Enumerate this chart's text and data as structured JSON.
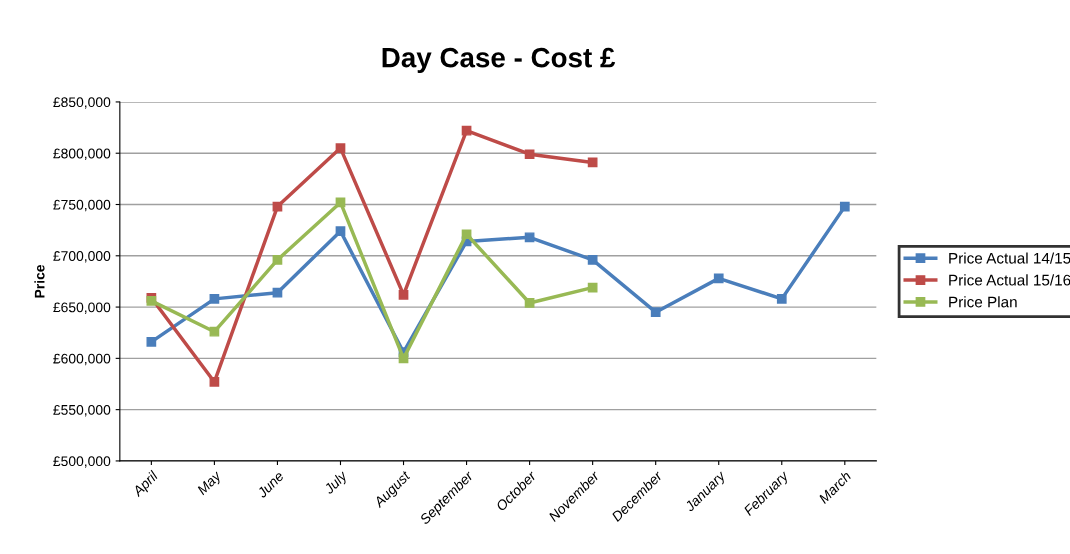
{
  "chart_data": {
    "type": "line",
    "title": "Day Case - Cost £",
    "ylabel": "Price",
    "categories": [
      "April",
      "May",
      "June",
      "July",
      "August",
      "September",
      "October",
      "November",
      "December",
      "January",
      "February",
      "March"
    ],
    "series": [
      {
        "name": "Price Actual 14/15",
        "color": "#4a7ebb",
        "values": [
          616000,
          658000,
          664000,
          724000,
          606000,
          714000,
          718000,
          696000,
          645000,
          678000,
          658000,
          748000
        ]
      },
      {
        "name": "Price Actual 15/16",
        "color": "#be4b48",
        "values": [
          659000,
          577000,
          748000,
          805000,
          662000,
          822000,
          799000,
          791000,
          null,
          null,
          null,
          null
        ]
      },
      {
        "name": "Price Plan",
        "color": "#98b954",
        "values": [
          656000,
          626000,
          696000,
          752000,
          600000,
          721000,
          654000,
          669000,
          null,
          null,
          null,
          null
        ]
      }
    ],
    "ylim": [
      500000,
      850000
    ],
    "yticks": [
      {
        "value": 500000,
        "label": "£500,000"
      },
      {
        "value": 550000,
        "label": "£550,000"
      },
      {
        "value": 600000,
        "label": "£600,000"
      },
      {
        "value": 650000,
        "label": "£650,000"
      },
      {
        "value": 700000,
        "label": "£700,000"
      },
      {
        "value": 750000,
        "label": "£750,000"
      },
      {
        "value": 800000,
        "label": "£800,000"
      },
      {
        "value": 850000,
        "label": "£850,000"
      }
    ],
    "grid": "y",
    "legend": "right",
    "marker": "square",
    "line_style": "solid"
  }
}
